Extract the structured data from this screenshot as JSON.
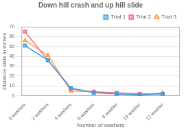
{
  "chart_data": {
    "type": "line",
    "title": "Down hill crash and up hill slide",
    "x_label": "Number of washers",
    "y_label": "Distance slide in inches",
    "x": [
      0,
      2,
      4,
      6,
      8,
      10,
      12
    ],
    "series": [
      {
        "name": "Trial 1",
        "marker": "square",
        "values": [
          51,
          36,
          8,
          3,
          2,
          1,
          2
        ]
      },
      {
        "name": "Trial 2",
        "marker": "square",
        "values": [
          65,
          36,
          7,
          4,
          3,
          2,
          2
        ]
      },
      {
        "name": "Trial 3",
        "marker": "triangle",
        "values": [
          56,
          41,
          5,
          4,
          2,
          1,
          3
        ]
      }
    ],
    "xlim": [
      -0.3,
      13.5
    ],
    "xticks": [
      {
        "value": 0,
        "label": "0 washers"
      },
      {
        "value": 2,
        "label": "2 washers"
      },
      {
        "value": 4,
        "label": "4 washers"
      },
      {
        "value": 6,
        "label": "6 washers"
      },
      {
        "value": 8,
        "label": "8 washer"
      },
      {
        "value": 10,
        "label": "10 washer"
      },
      {
        "value": 12,
        "label": "12 washer"
      }
    ],
    "ylim": [
      0,
      70
    ],
    "yticks": [
      0,
      10,
      20,
      30,
      40,
      50,
      60,
      70
    ],
    "grid": true,
    "legend": "upper right"
  }
}
